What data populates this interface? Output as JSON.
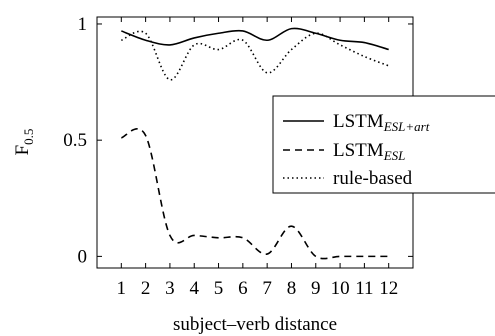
{
  "chart_data": {
    "type": "line",
    "title": "",
    "xlabel": "subject–verb distance",
    "ylabel": "F",
    "ylabel_sub": "0.5",
    "x": [
      1,
      2,
      3,
      4,
      5,
      6,
      7,
      8,
      9,
      10,
      11,
      12
    ],
    "x_tick_labels": [
      "1",
      "2",
      "3",
      "4",
      "5",
      "6",
      "7",
      "8",
      "9",
      "10",
      "11",
      "12"
    ],
    "y_ticks": [
      0,
      0.5,
      1
    ],
    "y_tick_labels": [
      "0",
      "0.5",
      "1"
    ],
    "xlim": [
      0,
      13
    ],
    "ylim": [
      -0.05,
      1.03
    ],
    "grid": false,
    "legend_position": "center-right",
    "series": [
      {
        "name": "LSTM",
        "name_sub": "ESL+art",
        "style": "solid",
        "values": [
          0.97,
          0.93,
          0.91,
          0.94,
          0.96,
          0.97,
          0.93,
          0.98,
          0.96,
          0.93,
          0.92,
          0.89
        ]
      },
      {
        "name": "LSTM",
        "name_sub": "ESL",
        "style": "dashed",
        "values": [
          0.51,
          0.52,
          0.09,
          0.09,
          0.08,
          0.08,
          0.01,
          0.13,
          0.0,
          0.0,
          0.0,
          0.0
        ]
      },
      {
        "name": "rule-based",
        "name_sub": "",
        "style": "dotted",
        "values": [
          0.93,
          0.96,
          0.76,
          0.91,
          0.89,
          0.93,
          0.79,
          0.89,
          0.96,
          0.91,
          0.86,
          0.82
        ]
      }
    ]
  }
}
